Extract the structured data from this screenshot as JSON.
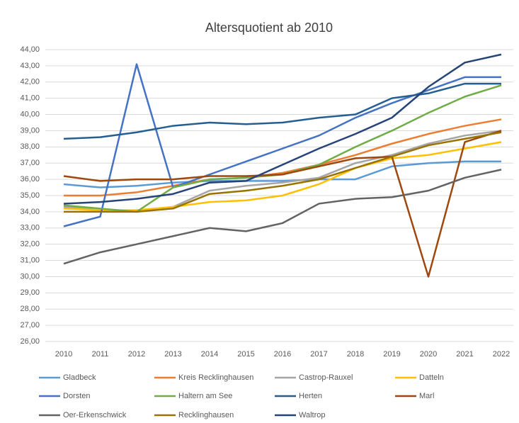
{
  "chart_data": {
    "type": "line",
    "title": "Altersquotient ab 2010",
    "categories": [
      "2010",
      "2011",
      "2012",
      "2013",
      "2014",
      "2015",
      "2016",
      "2017",
      "2018",
      "2019",
      "2020",
      "2021",
      "2022"
    ],
    "ylim": [
      26,
      44
    ],
    "yticks": [
      {
        "value": 26,
        "label": "26,00"
      },
      {
        "value": 27,
        "label": "27,00"
      },
      {
        "value": 28,
        "label": "28,00"
      },
      {
        "value": 29,
        "label": "29,00"
      },
      {
        "value": 30,
        "label": "30,00"
      },
      {
        "value": 31,
        "label": "31,00"
      },
      {
        "value": 32,
        "label": "32,00"
      },
      {
        "value": 33,
        "label": "33,00"
      },
      {
        "value": 34,
        "label": "34,00"
      },
      {
        "value": 35,
        "label": "35,00"
      },
      {
        "value": 36,
        "label": "36,00"
      },
      {
        "value": 37,
        "label": "37,00"
      },
      {
        "value": 38,
        "label": "38,00"
      },
      {
        "value": 39,
        "label": "39,00"
      },
      {
        "value": 40,
        "label": "40,00"
      },
      {
        "value": 41,
        "label": "41,00"
      },
      {
        "value": 42,
        "label": "42,00"
      },
      {
        "value": 43,
        "label": "43,00"
      },
      {
        "value": 44,
        "label": "44,00"
      }
    ],
    "grid": true,
    "legend": "bottom",
    "series": [
      {
        "name": "Gladbeck",
        "color": "#5b9bd5",
        "values": [
          35.7,
          35.5,
          35.6,
          35.8,
          35.9,
          35.9,
          35.9,
          36.0,
          36.0,
          36.8,
          37.0,
          37.1,
          37.1
        ]
      },
      {
        "name": "Kreis Recklinghausen",
        "color": "#ed7d31",
        "values": [
          35.0,
          35.0,
          35.2,
          35.6,
          36.0,
          36.1,
          36.4,
          36.9,
          37.5,
          38.2,
          38.8,
          39.3,
          39.7
        ]
      },
      {
        "name": "Castrop-Rauxel",
        "color": "#a5a5a5",
        "values": [
          34.3,
          34.1,
          34.0,
          34.3,
          35.3,
          35.6,
          35.8,
          36.1,
          37.0,
          37.5,
          38.2,
          38.7,
          39.0
        ]
      },
      {
        "name": "Datteln",
        "color": "#ffc000",
        "values": [
          34.2,
          34.1,
          34.1,
          34.3,
          34.6,
          34.7,
          35.0,
          35.7,
          36.7,
          37.3,
          37.5,
          37.9,
          38.3
        ]
      },
      {
        "name": "Dorsten",
        "color": "#4472c4",
        "values": [
          33.1,
          33.7,
          43.1,
          35.5,
          36.3,
          37.1,
          37.9,
          38.7,
          39.8,
          40.7,
          41.5,
          42.3,
          42.3
        ]
      },
      {
        "name": "Haltern am See",
        "color": "#70ad47",
        "values": [
          34.4,
          34.2,
          34.0,
          35.5,
          36.0,
          36.1,
          36.3,
          36.9,
          38.0,
          39.0,
          40.1,
          41.1,
          41.8
        ]
      },
      {
        "name": "Herten",
        "color": "#255e91",
        "values": [
          38.5,
          38.6,
          38.9,
          39.3,
          39.5,
          39.4,
          39.5,
          39.8,
          40.0,
          41.0,
          41.3,
          41.9,
          41.9
        ]
      },
      {
        "name": "Marl",
        "color": "#9e480e",
        "values": [
          36.2,
          35.9,
          36.0,
          36.0,
          36.2,
          36.2,
          36.3,
          36.8,
          37.3,
          37.4,
          30.0,
          38.3,
          39.0
        ]
      },
      {
        "name": "Oer-Erkenschwick",
        "color": "#636363",
        "values": [
          30.8,
          31.5,
          32.0,
          32.5,
          33.0,
          32.8,
          33.3,
          34.5,
          34.8,
          34.9,
          35.3,
          36.1,
          36.6
        ]
      },
      {
        "name": "Recklinghausen",
        "color": "#997300",
        "values": [
          34.0,
          34.0,
          34.0,
          34.2,
          35.1,
          35.3,
          35.6,
          36.0,
          36.7,
          37.4,
          38.1,
          38.5,
          38.9
        ]
      },
      {
        "name": "Waltrop",
        "color": "#264478",
        "values": [
          34.5,
          34.6,
          34.8,
          35.1,
          35.8,
          35.9,
          36.9,
          37.9,
          38.8,
          39.8,
          41.7,
          43.2,
          43.7
        ]
      }
    ]
  }
}
